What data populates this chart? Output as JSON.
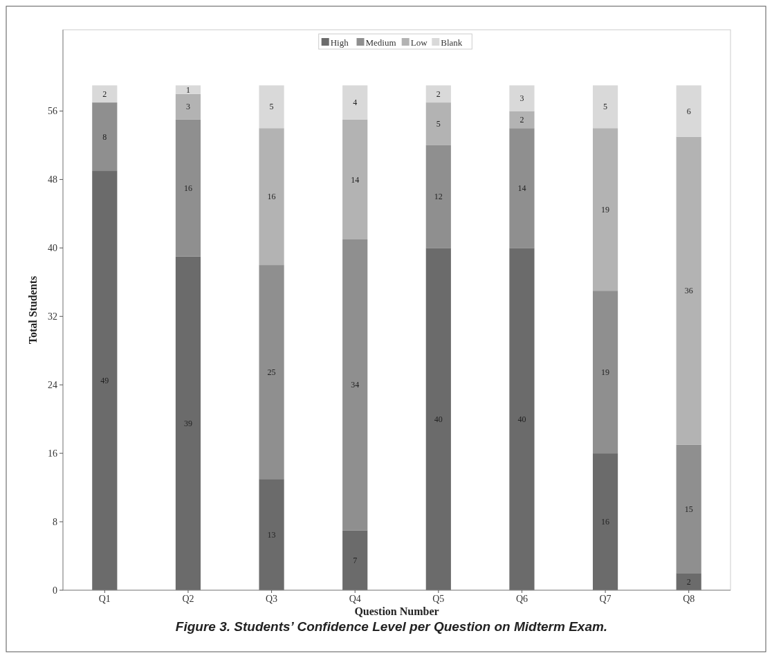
{
  "chart_data": {
    "type": "bar",
    "stacked": true,
    "xlabel": "Question Number",
    "ylabel": "Total Students",
    "annotations": [
      "Figure 3. Students’ Confidence Level per Question on Midterm Exam."
    ],
    "categories": [
      "Q1",
      "Q2",
      "Q3",
      "Q4",
      "Q5",
      "Q6",
      "Q7",
      "Q8"
    ],
    "series": [
      {
        "name": "High",
        "color": "#6b6b6b",
        "values": [
          49,
          39,
          13,
          7,
          40,
          40,
          16,
          2
        ],
        "value_labels": [
          "49",
          "39",
          "13",
          "7",
          "40",
          "40",
          "16",
          "2"
        ]
      },
      {
        "name": "Medium",
        "color": "#8f8f8f",
        "values": [
          8,
          16,
          25,
          34,
          12,
          14,
          19,
          15
        ],
        "value_labels": [
          "8",
          "16",
          "25",
          "34",
          "12",
          "14",
          "19",
          "15"
        ]
      },
      {
        "name": "Low",
        "color": "#b3b3b3",
        "values": [
          0,
          3,
          16,
          14,
          5,
          2,
          19,
          36
        ],
        "value_labels": [
          null,
          "3",
          "16",
          "14",
          "5",
          "2",
          "19",
          "36"
        ]
      },
      {
        "name": "Blank",
        "color": "#d9d9d9",
        "values": [
          2,
          1,
          5,
          4,
          2,
          3,
          5,
          6
        ],
        "value_labels": [
          "2",
          "1",
          "5",
          "4",
          "2",
          "3",
          "5",
          "6"
        ]
      }
    ],
    "ylim": [
      0,
      65.5
    ],
    "yticks": [
      0,
      8,
      16,
      24,
      32,
      40,
      48,
      56
    ],
    "grid": false,
    "legend": "top"
  }
}
